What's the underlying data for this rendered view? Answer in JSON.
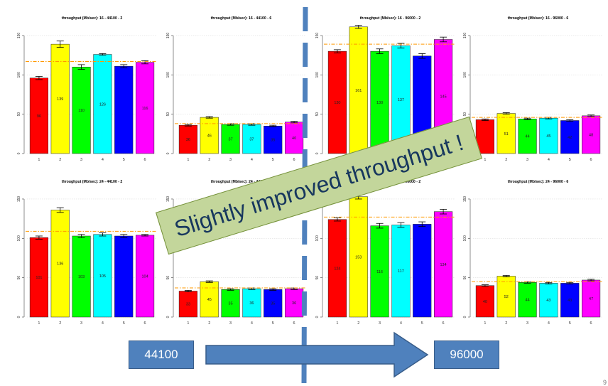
{
  "chart_data": [
    {
      "type": "bar",
      "title": "throughput (Mb/sec): 16 - 44100 - 2",
      "categories": [
        "1",
        "2",
        "3",
        "4",
        "5",
        "6"
      ],
      "values": [
        96,
        139,
        110,
        126,
        111,
        116
      ],
      "value_labels": [
        "96",
        "139",
        "110",
        "126",
        "",
        "116"
      ],
      "errors": [
        2,
        4,
        3,
        1,
        2,
        2
      ],
      "mean": 117,
      "ylim": [
        0,
        150
      ],
      "yticks": [
        0,
        50,
        100,
        150
      ],
      "colors": [
        "#ff0000",
        "#ffff00",
        "#00ff00",
        "#00ffff",
        "#0000ff",
        "#ff00ff"
      ],
      "mean_color": "#ff9900",
      "grid": true
    },
    {
      "type": "bar",
      "title": "throughput (Mb/sec): 16 - 44100 - 6",
      "categories": [
        "1",
        "2",
        "3",
        "4",
        "5",
        "6"
      ],
      "values": [
        36,
        46,
        37,
        37,
        35,
        40
      ],
      "value_labels": [
        "36",
        "46",
        "37",
        "37",
        "35",
        "40"
      ],
      "errors": [
        1,
        1,
        1,
        1,
        1,
        1
      ],
      "mean": 38,
      "ylim": [
        0,
        150
      ],
      "yticks": [
        0,
        50,
        100,
        150
      ],
      "colors": [
        "#ff0000",
        "#ffff00",
        "#00ff00",
        "#00ffff",
        "#0000ff",
        "#ff00ff"
      ],
      "mean_color": "#ff9900",
      "grid": true
    },
    {
      "type": "bar",
      "title": "throughput (Mb/sec): 16 - 96000 - 2",
      "categories": [
        "1",
        "2",
        "3",
        "4",
        "5",
        "6"
      ],
      "values": [
        130,
        161,
        130,
        137,
        124,
        145
      ],
      "value_labels": [
        "130",
        "161",
        "130",
        "137",
        "",
        "145"
      ],
      "errors": [
        2,
        2,
        3,
        3,
        3,
        3
      ],
      "mean": 139,
      "ylim": [
        0,
        150
      ],
      "yticks": [
        0,
        50,
        100,
        150
      ],
      "colors": [
        "#ff0000",
        "#ffff00",
        "#00ff00",
        "#00ffff",
        "#0000ff",
        "#ff00ff"
      ],
      "mean_color": "#ff9900",
      "grid": true
    },
    {
      "type": "bar",
      "title": "throughput (Mb/sec): 16 - 96000 - 6",
      "categories": [
        "1",
        "2",
        "3",
        "4",
        "5",
        "6"
      ],
      "values": [
        43,
        51,
        44,
        45,
        42,
        48
      ],
      "value_labels": [
        "",
        "51",
        "44",
        "45",
        "42",
        "48"
      ],
      "errors": [
        1,
        1,
        1,
        1,
        1,
        1
      ],
      "mean": 46,
      "ylim": [
        0,
        150
      ],
      "yticks": [
        0,
        50,
        100,
        150
      ],
      "colors": [
        "#ff0000",
        "#ffff00",
        "#00ff00",
        "#00ffff",
        "#0000ff",
        "#ff00ff"
      ],
      "mean_color": "#ff9900",
      "grid": true
    },
    {
      "type": "bar",
      "title": "throughput (Mb/sec): 24 - 44100 - 2",
      "categories": [
        "1",
        "2",
        "3",
        "4",
        "5",
        "6"
      ],
      "values": [
        101,
        136,
        103,
        105,
        103,
        104
      ],
      "value_labels": [
        "101",
        "136",
        "103",
        "105",
        "",
        "104"
      ],
      "errors": [
        2,
        3,
        2,
        2,
        2,
        1
      ],
      "mean": 109,
      "ylim": [
        0,
        150
      ],
      "yticks": [
        0,
        50,
        100,
        150
      ],
      "colors": [
        "#ff0000",
        "#ffff00",
        "#00ff00",
        "#00ffff",
        "#0000ff",
        "#ff00ff"
      ],
      "mean_color": "#ff9900",
      "grid": true
    },
    {
      "type": "bar",
      "title": "throughput (Mb/sec): 24 - 44100 - 6",
      "categories": [
        "1",
        "2",
        "3",
        "4",
        "5",
        "6"
      ],
      "values": [
        33,
        45,
        35,
        36,
        35,
        36
      ],
      "value_labels": [
        "33",
        "45",
        "35",
        "36",
        "35",
        "36"
      ],
      "errors": [
        1,
        1,
        1,
        1,
        1,
        1
      ],
      "mean": 37,
      "ylim": [
        0,
        150
      ],
      "yticks": [
        0,
        50,
        100,
        150
      ],
      "colors": [
        "#ff0000",
        "#ffff00",
        "#00ff00",
        "#00ffff",
        "#0000ff",
        "#ff00ff"
      ],
      "mean_color": "#ff9900",
      "grid": true
    },
    {
      "type": "bar",
      "title": "throughput (Mb/sec): 24 - 96000 - 2",
      "categories": [
        "1",
        "2",
        "3",
        "4",
        "5",
        "6"
      ],
      "values": [
        124,
        153,
        116,
        117,
        118,
        134
      ],
      "value_labels": [
        "124",
        "153",
        "116",
        "117",
        "",
        "134"
      ],
      "errors": [
        2,
        3,
        3,
        3,
        3,
        3
      ],
      "mean": 127,
      "ylim": [
        0,
        150
      ],
      "yticks": [
        0,
        50,
        100,
        150
      ],
      "colors": [
        "#ff0000",
        "#ffff00",
        "#00ff00",
        "#00ffff",
        "#0000ff",
        "#ff00ff"
      ],
      "mean_color": "#ff9900",
      "grid": true
    },
    {
      "type": "bar",
      "title": "throughput (Mb/sec): 24 - 96000 - 6",
      "categories": [
        "1",
        "2",
        "3",
        "4",
        "5",
        "6"
      ],
      "values": [
        40,
        52,
        44,
        43,
        43,
        47
      ],
      "value_labels": [
        "40",
        "52",
        "44",
        "43",
        "43",
        "47"
      ],
      "errors": [
        1,
        1,
        1,
        1,
        1,
        1
      ],
      "mean": 45,
      "ylim": [
        0,
        150
      ],
      "yticks": [
        0,
        50,
        100,
        150
      ],
      "colors": [
        "#ff0000",
        "#ffff00",
        "#00ff00",
        "#00ffff",
        "#0000ff",
        "#ff00ff"
      ],
      "mean_color": "#ff9900",
      "grid": true
    }
  ],
  "annotations": {
    "banner": "Slightly improved throughput !",
    "from_label": "44100",
    "to_label": "96000",
    "page_number": "9",
    "box_fill": "#4f81bd",
    "banner_fill": "#c3d69b",
    "divider_color": "#4f81bd"
  }
}
